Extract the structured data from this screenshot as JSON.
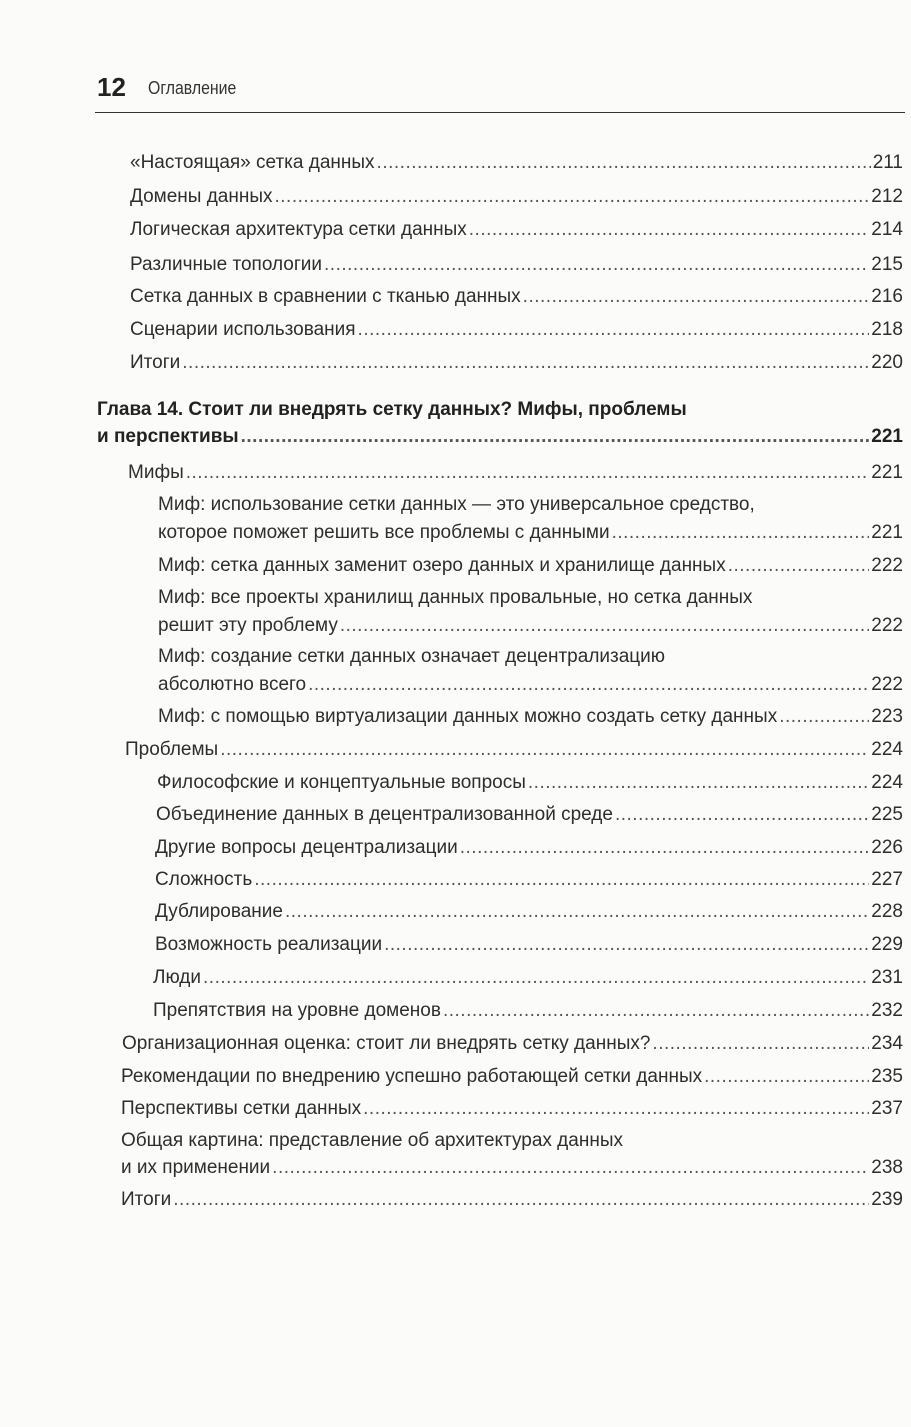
{
  "header": {
    "page_number": "12",
    "title": "Оглавление"
  },
  "entries": [
    {
      "lines": [
        "«Настоящая» сетка данных"
      ],
      "page": "211"
    },
    {
      "lines": [
        "Домены данных"
      ],
      "page": "212"
    },
    {
      "lines": [
        "Логическая архитектура сетки данных"
      ],
      "page": "214"
    },
    {
      "lines": [
        "Различные топологии"
      ],
      "page": "215"
    },
    {
      "lines": [
        "Сетка данных в сравнении с тканью данных"
      ],
      "page": "216"
    },
    {
      "lines": [
        "Сценарии использования"
      ],
      "page": "218"
    },
    {
      "lines": [
        "Итоги"
      ],
      "page": "220"
    },
    {
      "lines": [
        "Глава 14. Стоит ли внедрять сетку данных? Мифы, проблемы",
        "и перспективы"
      ],
      "page": "221",
      "chapter": true
    },
    {
      "lines": [
        "Мифы"
      ],
      "page": "221"
    },
    {
      "lines": [
        "Миф: использование сетки данных — это универсальное средство,",
        "которое поможет решить все проблемы с данными"
      ],
      "page": "221"
    },
    {
      "lines": [
        "Миф: сетка данных заменит озеро данных и хранилище данных"
      ],
      "page": "222"
    },
    {
      "lines": [
        "Миф: все проекты хранилищ данных провальные, но сетка данных",
        "решит эту проблему"
      ],
      "page": "222"
    },
    {
      "lines": [
        "Миф: создание сетки данных означает децентрализацию",
        "абсолютно всего"
      ],
      "page": "222"
    },
    {
      "lines": [
        "Миф: с помощью виртуализации данных можно создать сетку данных"
      ],
      "page": "223"
    },
    {
      "lines": [
        "Проблемы"
      ],
      "page": "224"
    },
    {
      "lines": [
        "Философские и концептуальные вопросы"
      ],
      "page": "224"
    },
    {
      "lines": [
        "Объединение данных в децентрализованной среде"
      ],
      "page": "225"
    },
    {
      "lines": [
        "Другие вопросы децентрализации"
      ],
      "page": "226"
    },
    {
      "lines": [
        "Сложность"
      ],
      "page": "227"
    },
    {
      "lines": [
        "Дублирование"
      ],
      "page": "228"
    },
    {
      "lines": [
        "Возможность реализации"
      ],
      "page": "229"
    },
    {
      "lines": [
        "Люди"
      ],
      "page": "231"
    },
    {
      "lines": [
        "Препятствия на уровне доменов"
      ],
      "page": "232"
    },
    {
      "lines": [
        "Организационная оценка: стоит ли внедрять сетку данных?"
      ],
      "page": "234"
    },
    {
      "lines": [
        "Рекомендации по внедрению успешно работающей сетки данных"
      ],
      "page": "235"
    },
    {
      "lines": [
        "Перспективы сетки данных"
      ],
      "page": "237"
    },
    {
      "lines": [
        "Общая картина: представление об архитектурах данных",
        "и их применении"
      ],
      "page": "238"
    },
    {
      "lines": [
        "Итоги"
      ],
      "page": "239"
    }
  ]
}
